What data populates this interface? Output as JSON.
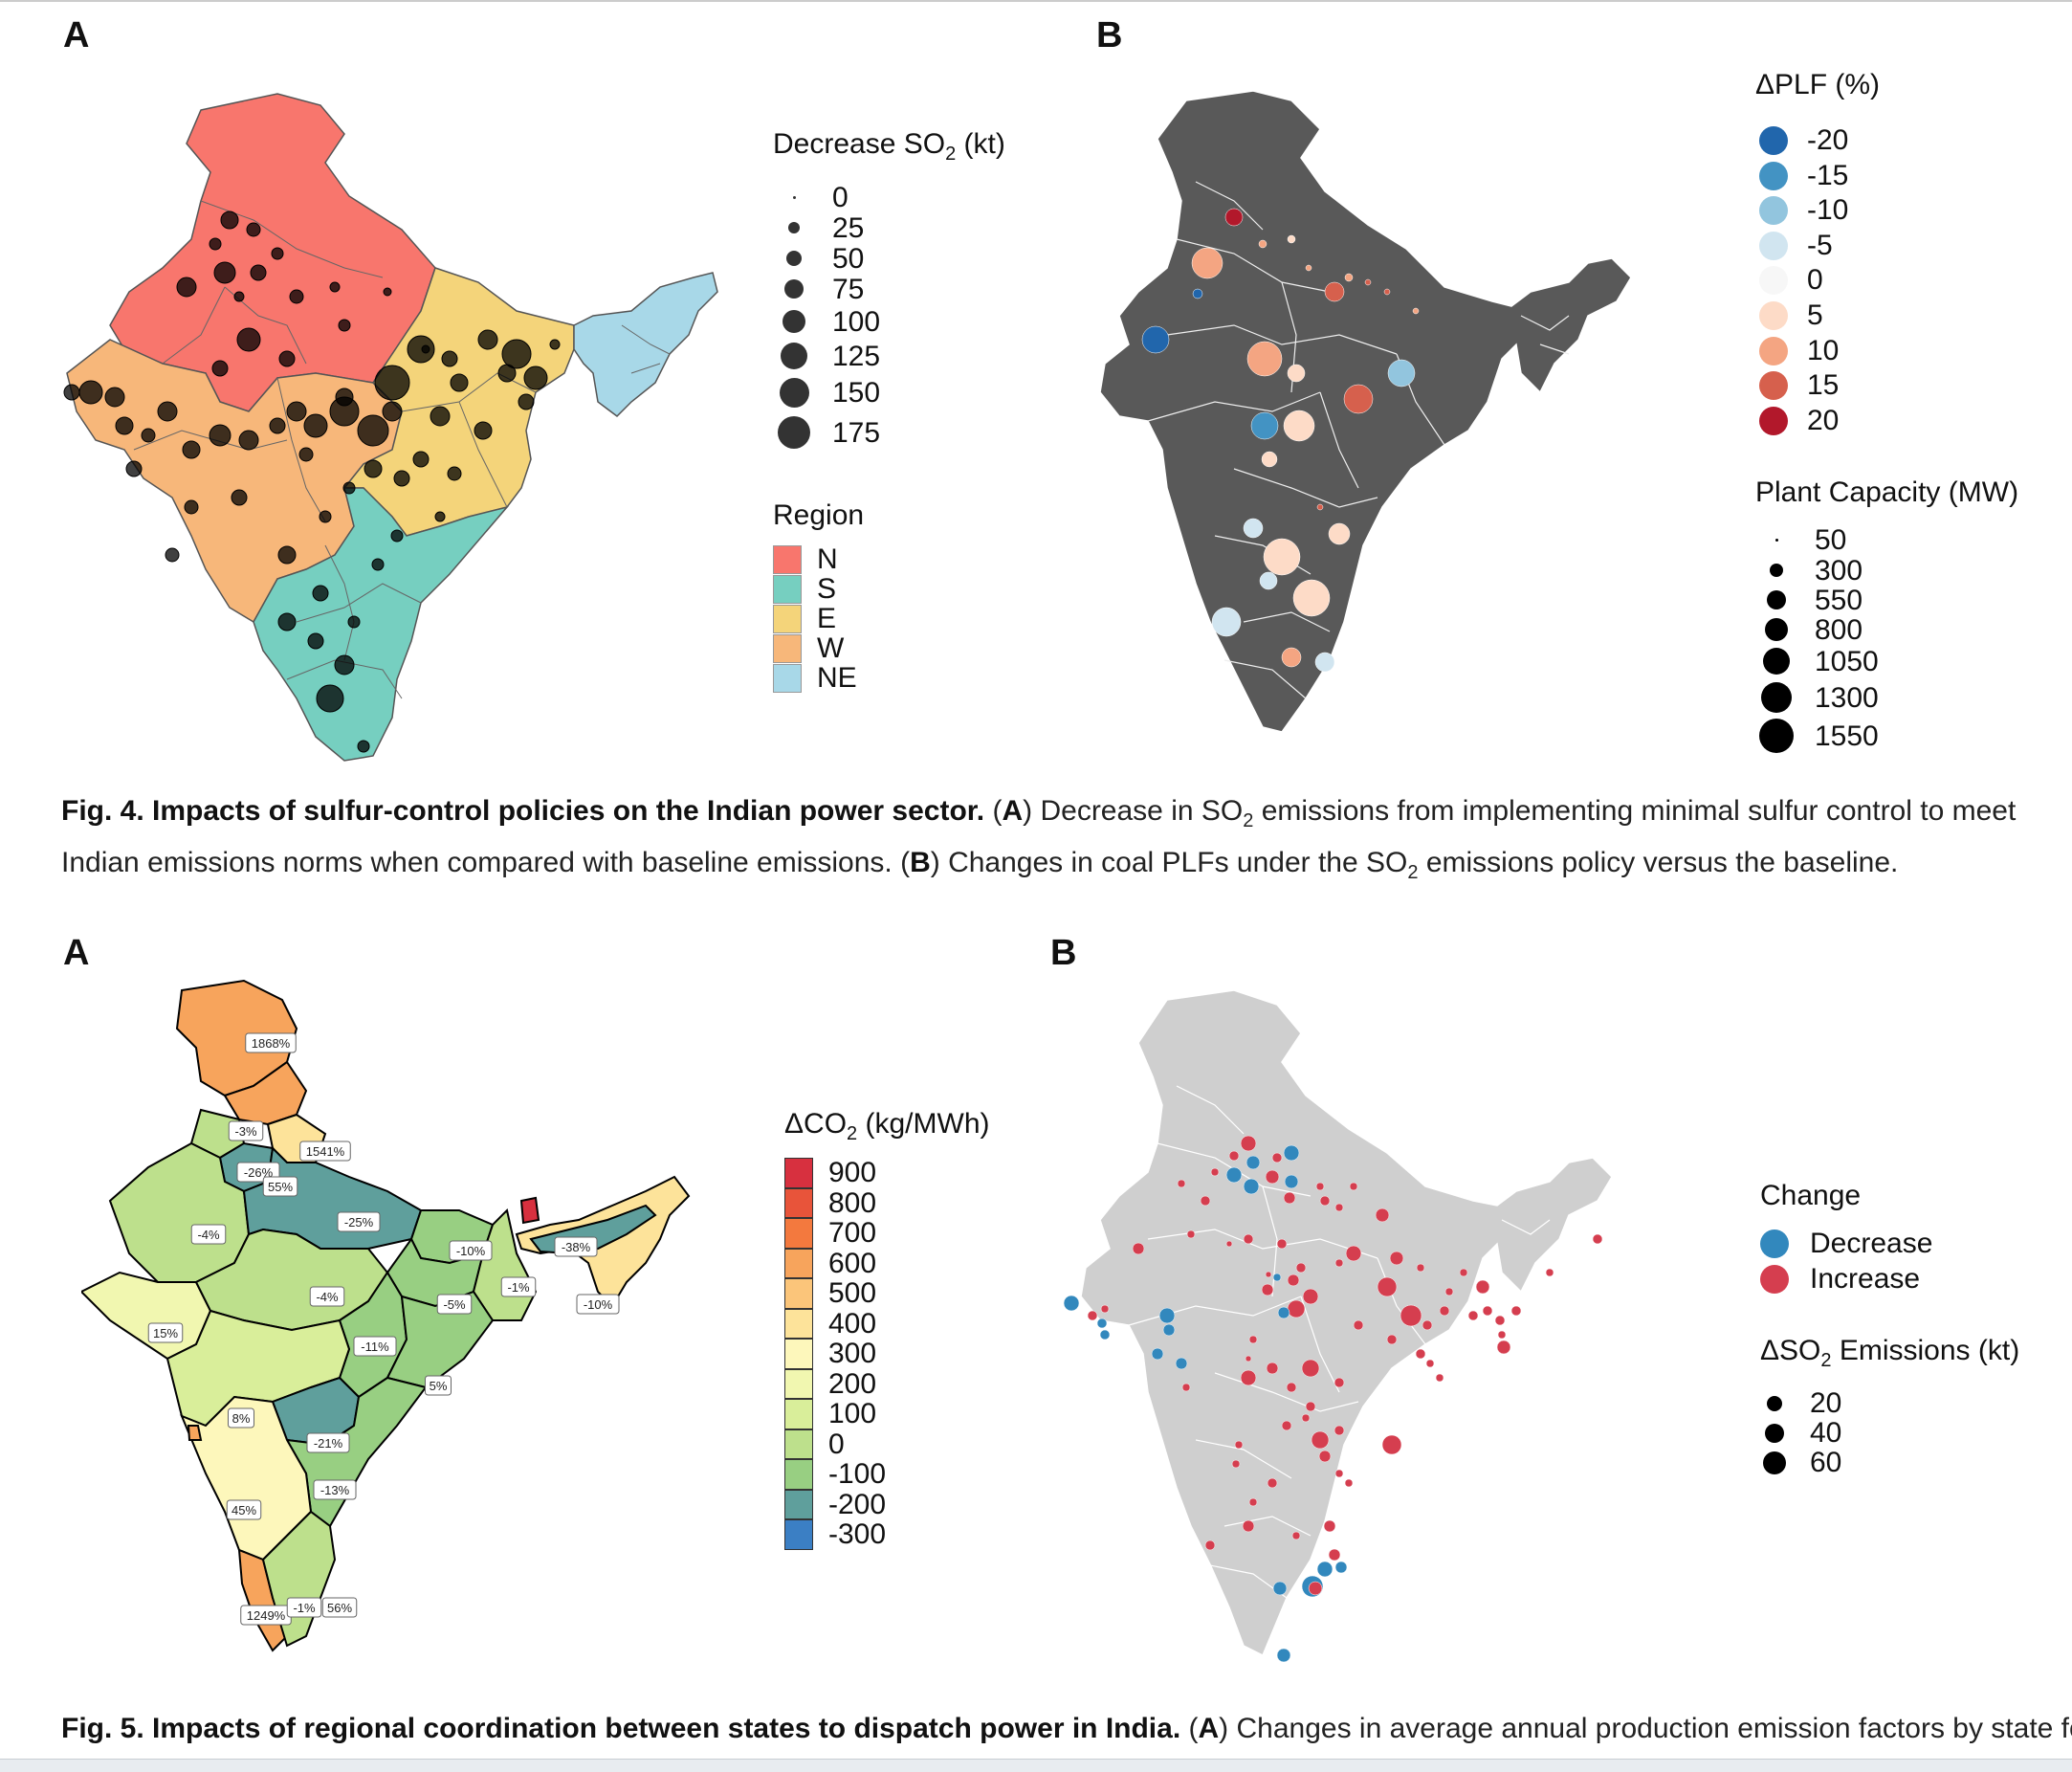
{
  "fig4": {
    "panelA_letter": "A",
    "panelB_letter": "B",
    "legendA": {
      "title_prefix": "Decrease SO",
      "title_sub": "2",
      "title_suffix": " (kt)",
      "sizes": [
        "0",
        "25",
        "50",
        "75",
        "100",
        "125",
        "150",
        "175"
      ],
      "region_title": "Region",
      "regions": [
        {
          "label": "N",
          "color": "#f8766d"
        },
        {
          "label": "S",
          "color": "#76cfc0"
        },
        {
          "label": "E",
          "color": "#f4d47a"
        },
        {
          "label": "W",
          "color": "#f7b77a"
        },
        {
          "label": "NE",
          "color": "#a8d8e8"
        }
      ]
    },
    "legendB": {
      "plf_title": "ΔPLF (%)",
      "plf_values": [
        {
          "label": "-20",
          "color": "#2166ac"
        },
        {
          "label": "-15",
          "color": "#4393c3"
        },
        {
          "label": "-10",
          "color": "#92c5de"
        },
        {
          "label": "-5",
          "color": "#d1e5f0"
        },
        {
          "label": "0",
          "color": "#f7f7f7"
        },
        {
          "label": "5",
          "color": "#fddbc7"
        },
        {
          "label": "10",
          "color": "#f4a582"
        },
        {
          "label": "15",
          "color": "#d6604d"
        },
        {
          "label": "20",
          "color": "#b2182b"
        }
      ],
      "cap_title": "Plant Capacity (MW)",
      "cap_values": [
        "50",
        "300",
        "550",
        "800",
        "1050",
        "1300",
        "1550"
      ]
    },
    "caption": {
      "bold": "Fig. 4. Impacts of sulfur-control policies on the Indian power sector.",
      "a_open": " (",
      "a_letter": "A",
      "a_text1": ") Decrease in SO",
      "sub": "2",
      "a_text2": " emissions from implementing minimal sulfur control to meet Indian emissions norms when compared with baseline emissions. (",
      "b_letter": "B",
      "b_text1": ") Changes in coal PLFs under the SO",
      "b_text2": " emissions policy versus the baseline."
    }
  },
  "fig5": {
    "panelA_letter": "A",
    "panelB_letter": "B",
    "legendA": {
      "title_prefix": "ΔCO",
      "title_sub": "2",
      "title_suffix": " (kg/MWh)",
      "scale": [
        {
          "label": "900",
          "color": "#d7303f"
        },
        {
          "label": "800",
          "color": "#e8543a"
        },
        {
          "label": "700",
          "color": "#f3793e"
        },
        {
          "label": "600",
          "color": "#f7a45c"
        },
        {
          "label": "500",
          "color": "#fbc57a"
        },
        {
          "label": "400",
          "color": "#fde39a"
        },
        {
          "label": "300",
          "color": "#fdf7bb"
        },
        {
          "label": "200",
          "color": "#f1f7b0"
        },
        {
          "label": "100",
          "color": "#d9ee9a"
        },
        {
          "label": "0",
          "color": "#bde08c"
        },
        {
          "label": "-100",
          "color": "#98cf82"
        },
        {
          "label": "-200",
          "color": "#5f9f9c"
        },
        {
          "label": "-300",
          "color": "#3b7fc4"
        }
      ]
    },
    "mapA_labels": [
      "1868%",
      "-3%",
      "1541%",
      "-26%",
      "55%",
      "-25%",
      "-4%",
      "-10%",
      "-38%",
      "-1%",
      "-4%",
      "-5%",
      "-10%",
      "15%",
      "-11%",
      "5%",
      "8%",
      "-21%",
      "-13%",
      "45%",
      "1249%",
      "-1%",
      "56%"
    ],
    "legendB": {
      "change_title": "Change",
      "change_values": [
        {
          "label": "Decrease",
          "color": "#3288bd"
        },
        {
          "label": "Increase",
          "color": "#d53e4f"
        }
      ],
      "so2_prefix": "ΔSO",
      "so2_sub": "2",
      "so2_suffix": " Emissions (kt)",
      "so2_values": [
        "20",
        "40",
        "60"
      ]
    },
    "caption": {
      "bold": "Fig. 5. Impacts of regional coordination between states to dispatch power in India.",
      "a_open": " (",
      "a_letter": "A",
      "a_text": ") Changes in average annual production emission factors by state for"
    }
  }
}
